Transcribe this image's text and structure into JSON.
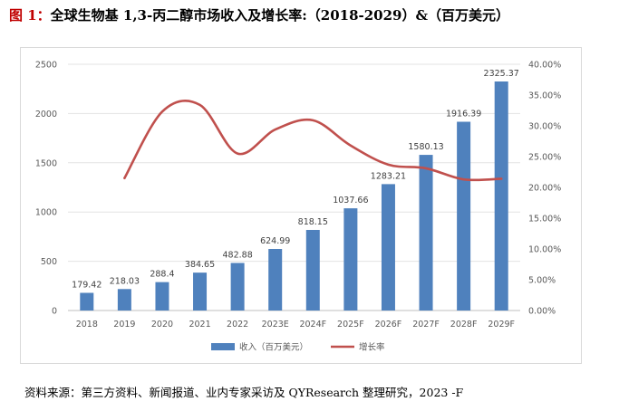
{
  "figure": {
    "label": "图 1：",
    "title": "全球生物基 1,3-丙二醇市场收入及增长率:（2018-2029）&（百万美元）",
    "source": "资料来源：第三方资料、新闻报道、业内专家采访及 QYResearch 整理研究，2023 -F"
  },
  "chart_data": {
    "type": "bar",
    "categories": [
      "2018",
      "2019",
      "2020",
      "2021",
      "2022",
      "2023E",
      "2024F",
      "2025F",
      "2026F",
      "2027F",
      "2028F",
      "2029F"
    ],
    "series": [
      {
        "name": "收入（百万美元）",
        "type": "bar",
        "axis": "left",
        "values": [
          179.42,
          218.03,
          288.4,
          384.65,
          482.88,
          624.99,
          818.15,
          1037.66,
          1283.21,
          1580.13,
          1916.39,
          2325.37
        ],
        "labels": [
          "179.42",
          "218.03",
          "288.4",
          "384.65",
          "482.88",
          "624.99",
          "818.15",
          "1037.66",
          "1283.21",
          "1580.13",
          "1916.39",
          "2325.37"
        ],
        "color": "#4f81bd"
      },
      {
        "name": "增长率",
        "type": "line",
        "axis": "right",
        "values": [
          null,
          21.5,
          32.3,
          33.4,
          25.5,
          29.4,
          30.9,
          26.8,
          23.7,
          23.1,
          21.3,
          21.4
        ],
        "color": "#c0504d"
      }
    ],
    "y_left": {
      "min": 0,
      "max": 2500,
      "ticks": [
        "0",
        "500",
        "1000",
        "1500",
        "2000",
        "2500"
      ],
      "tick_values": [
        0,
        500,
        1000,
        1500,
        2000,
        2500
      ]
    },
    "y_right": {
      "min": 0,
      "max": 40,
      "ticks": [
        "0.00%",
        "5.00%",
        "10.00%",
        "15.00%",
        "20.00%",
        "25.00%",
        "30.00%",
        "35.00%",
        "40.00%"
      ],
      "tick_values": [
        0,
        5,
        10,
        15,
        20,
        25,
        30,
        35,
        40
      ]
    },
    "grid": true,
    "legend": "bottom-center",
    "legend_labels": [
      "收入（百万美元）",
      "增长率"
    ]
  }
}
